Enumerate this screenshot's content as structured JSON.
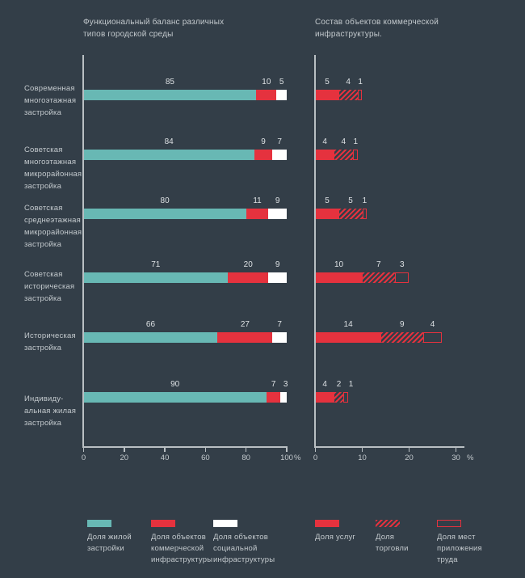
{
  "colors": {
    "background": "#333e48",
    "teal": "#68b8b4",
    "red": "#e5323e",
    "white": "#ffffff",
    "axis": "#b9bfc3",
    "text": "#c3c9cd",
    "value_text": "#dce0e3"
  },
  "chart_data": [
    {
      "type": "bar",
      "orientation": "horizontal",
      "stacked": true,
      "title": "Функциональный баланс различных\nтипов городской среды",
      "unit": "%",
      "xlim": [
        0,
        100
      ],
      "ticks": [
        0,
        20,
        40,
        60,
        80,
        100
      ],
      "categories": [
        "Современная\nмногоэтажная\nзастройка",
        "Советская\nмногоэтажная\nмикрорайонная\nзастройка",
        "Советская\nсреднеэтажная\nмикрорайонная\nзастройка",
        "Советская\nисторическая\nзастройка",
        "Историческая\nзастройка",
        "Индивиду-\nальная жилая\nзастройка"
      ],
      "series": [
        {
          "name": "Доля жилой застройки",
          "style": "teal",
          "values": [
            85,
            84,
            80,
            71,
            66,
            90
          ]
        },
        {
          "name": "Доля объектов коммерческой инфраструктуры",
          "style": "red",
          "values": [
            10,
            9,
            11,
            20,
            27,
            7
          ]
        },
        {
          "name": "Доля объектов социальной инфраструктуры",
          "style": "white",
          "values": [
            5,
            7,
            9,
            9,
            7,
            3
          ]
        }
      ]
    },
    {
      "type": "bar",
      "orientation": "horizontal",
      "stacked": true,
      "title": "Состав объектов коммерческой\nинфраструктуры.",
      "unit": "%",
      "xlim": [
        0,
        30
      ],
      "ticks": [
        0,
        10,
        20,
        30
      ],
      "series": [
        {
          "name": "Доля услуг",
          "style": "red",
          "values": [
            5,
            4,
            5,
            10,
            14,
            4
          ]
        },
        {
          "name": "Доля торговли",
          "style": "hatch",
          "values": [
            4,
            4,
            5,
            7,
            9,
            2
          ]
        },
        {
          "name": "Доля мест приложения труда",
          "style": "outline",
          "values": [
            1,
            1,
            1,
            3,
            4,
            1
          ]
        }
      ]
    }
  ],
  "legend": {
    "groups": [
      {
        "items": [
          {
            "label": "Доля жилой\nзастройки",
            "style": "teal"
          },
          {
            "label": "Доля объектов\nкоммерческой\nинфраструктуры",
            "style": "red"
          },
          {
            "label": "Доля объектов\nсоциальной\nинфраструктуры",
            "style": "white"
          }
        ]
      },
      {
        "items": [
          {
            "label": "Доля услуг",
            "style": "red"
          },
          {
            "label": "Доля\nторговли",
            "style": "hatch"
          },
          {
            "label": "Доля мест\nприложения\nтруда",
            "style": "outline"
          }
        ]
      }
    ]
  }
}
